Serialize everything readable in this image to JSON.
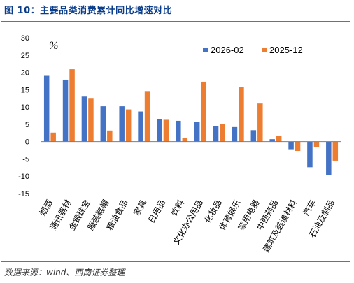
{
  "header": {
    "title": "图 10：主要品类消费累计同比增速对比"
  },
  "footer": {
    "source": "数据来源：wind、西南证券整理"
  },
  "chart_data": {
    "type": "bar",
    "title": "图 10：主要品类消费累计同比增速对比",
    "ylabel": "%",
    "xlabel": "",
    "ylim": [
      -15,
      30
    ],
    "yticks": [
      -15,
      -10,
      -5,
      0,
      5,
      10,
      15,
      20,
      25,
      30
    ],
    "legend": "top-right",
    "categories": [
      "烟酒",
      "通讯器材",
      "金银珠宝",
      "服装鞋帽",
      "粮油食品",
      "家具",
      "日用品",
      "饮料",
      "文化办公用品",
      "化妆品",
      "体育娱乐",
      "家用电器",
      "中西药品",
      "建筑及装潢材料",
      "汽车",
      "石油及制品"
    ],
    "series": [
      {
        "name": "2026-02",
        "color": "#4472c4",
        "values": [
          19.0,
          17.9,
          13.0,
          10.2,
          10.2,
          8.7,
          6.5,
          6.0,
          5.7,
          4.5,
          4.2,
          3.3,
          0.7,
          -2.2,
          -7.4,
          -9.7
        ]
      },
      {
        "name": "2025-12",
        "color": "#ed7d31",
        "values": [
          2.6,
          20.9,
          12.6,
          3.2,
          9.3,
          14.6,
          6.3,
          1.1,
          17.3,
          5.0,
          15.7,
          11.0,
          1.7,
          -2.7,
          -1.6,
          -5.5
        ]
      }
    ]
  }
}
